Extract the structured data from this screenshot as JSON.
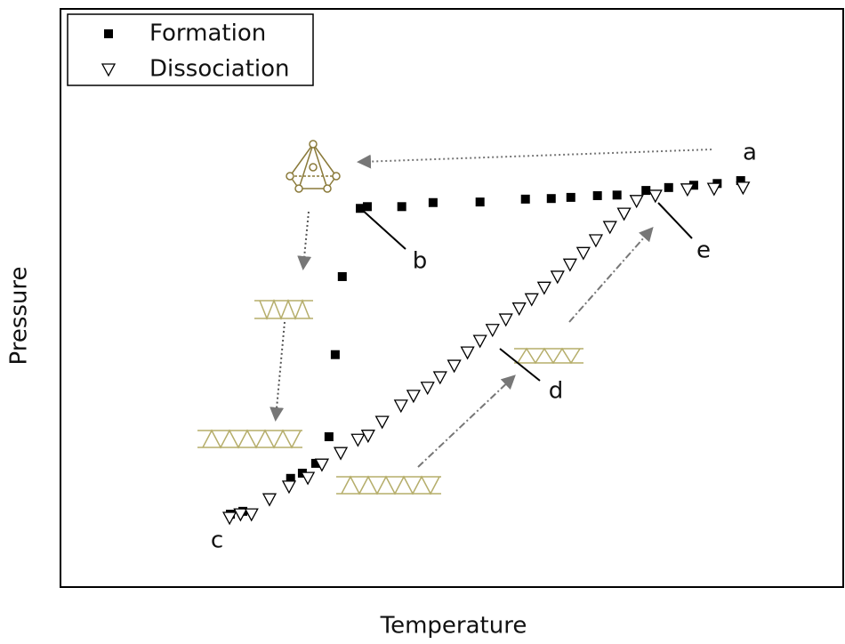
{
  "chart_data": {
    "type": "scatter",
    "x_label": "Temperature",
    "y_label": "Pressure",
    "xlim": [
      0,
      100
    ],
    "ylim": [
      0,
      100
    ],
    "legend": "upper-left",
    "series": [
      {
        "name": "Formation",
        "color": "#000000",
        "marker": "square",
        "x": [
          21.7,
          23.3,
          29.4,
          30.9,
          32.6,
          34.3,
          35.1,
          36.0,
          38.3,
          39.2,
          43.6,
          47.6,
          53.6,
          59.4,
          62.7,
          65.2,
          68.6,
          71.1,
          74.8,
          77.7,
          80.9,
          83.9,
          86.9
        ],
        "values": [
          12.6,
          13.1,
          18.8,
          19.7,
          21.4,
          26.0,
          40.2,
          53.7,
          65.5,
          65.8,
          65.8,
          66.5,
          66.6,
          67.1,
          67.2,
          67.4,
          67.7,
          67.8,
          68.6,
          69.1,
          69.5,
          69.8,
          70.3
        ]
      },
      {
        "name": "Dissociation",
        "color": "#000000",
        "marker": "triangle-down-open",
        "x": [
          21.6,
          23.0,
          24.4,
          26.7,
          29.2,
          31.6,
          33.4,
          35.8,
          38.0,
          39.3,
          41.1,
          43.5,
          45.1,
          46.9,
          48.5,
          50.3,
          52.0,
          53.6,
          55.2,
          56.9,
          58.6,
          60.2,
          61.8,
          63.5,
          65.1,
          66.8,
          68.4,
          70.2,
          72.0,
          73.6,
          76.0,
          80.1,
          83.5,
          87.2
        ],
        "values": [
          12.0,
          12.6,
          12.6,
          15.2,
          17.4,
          18.9,
          21.2,
          23.2,
          25.5,
          26.2,
          28.6,
          31.4,
          33.1,
          34.5,
          36.3,
          38.3,
          40.6,
          42.6,
          44.5,
          46.3,
          48.2,
          49.8,
          51.8,
          53.7,
          55.8,
          57.8,
          60.0,
          62.3,
          64.6,
          66.8,
          67.7,
          68.8,
          68.9,
          69.1
        ]
      }
    ],
    "annotations": [
      "a",
      "b",
      "c",
      "d",
      "e"
    ]
  }
}
